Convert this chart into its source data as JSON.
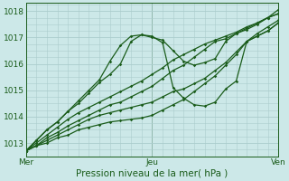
{
  "title": "Pression niveau de la mer( hPa )",
  "bg_color": "#cce8e8",
  "grid_color": "#aacccc",
  "line_color": "#1a5c1a",
  "xlim": [
    0,
    48
  ],
  "ylim": [
    1012.5,
    1018.3
  ],
  "yticks": [
    1013,
    1014,
    1015,
    1016,
    1017,
    1018
  ],
  "xtick_labels": [
    "Mer",
    "Jeu",
    "Ven"
  ],
  "xtick_positions": [
    0,
    24,
    48
  ],
  "series": [
    {
      "x": [
        0,
        2,
        4,
        6,
        8,
        10,
        12,
        14,
        16,
        18,
        20,
        22,
        24,
        26,
        28,
        30,
        32,
        34,
        36,
        38,
        40,
        42,
        44,
        46,
        48
      ],
      "y": [
        1012.7,
        1013.1,
        1013.5,
        1013.8,
        1014.2,
        1014.6,
        1015.0,
        1015.4,
        1016.1,
        1016.7,
        1017.05,
        1017.1,
        1017.0,
        1016.9,
        1016.5,
        1016.1,
        1015.95,
        1016.05,
        1016.2,
        1016.85,
        1017.15,
        1017.3,
        1017.5,
        1017.75,
        1017.9
      ]
    },
    {
      "x": [
        0,
        2,
        4,
        6,
        8,
        10,
        12,
        14,
        16,
        18,
        20,
        22,
        24,
        26,
        28,
        30,
        32,
        34,
        36,
        38,
        40,
        42,
        44,
        46,
        48
      ],
      "y": [
        1012.7,
        1013.1,
        1013.5,
        1013.8,
        1014.2,
        1014.5,
        1014.9,
        1015.3,
        1015.6,
        1016.0,
        1016.85,
        1017.1,
        1017.05,
        1016.8,
        1015.1,
        1014.7,
        1014.45,
        1014.4,
        1014.55,
        1015.05,
        1015.35,
        1016.85,
        1017.15,
        1017.4,
        1017.65
      ]
    },
    {
      "x": [
        0,
        2,
        4,
        6,
        8,
        10,
        12,
        14,
        16,
        18,
        20,
        22,
        24,
        26,
        28,
        30,
        32,
        34,
        36,
        38,
        40,
        42,
        44,
        46,
        48
      ],
      "y": [
        1012.7,
        1013.0,
        1013.3,
        1013.6,
        1013.9,
        1014.15,
        1014.35,
        1014.55,
        1014.75,
        1014.95,
        1015.15,
        1015.35,
        1015.6,
        1015.85,
        1016.15,
        1016.35,
        1016.55,
        1016.75,
        1016.9,
        1017.05,
        1017.2,
        1017.4,
        1017.55,
        1017.75,
        1018.05
      ]
    },
    {
      "x": [
        0,
        2,
        4,
        6,
        8,
        10,
        12,
        14,
        16,
        18,
        20,
        22,
        24,
        26,
        28,
        30,
        32,
        34,
        36,
        38,
        40,
        42,
        44,
        46,
        48
      ],
      "y": [
        1012.7,
        1012.9,
        1013.2,
        1013.4,
        1013.65,
        1013.85,
        1014.05,
        1014.25,
        1014.45,
        1014.55,
        1014.75,
        1014.95,
        1015.15,
        1015.45,
        1015.75,
        1015.95,
        1016.25,
        1016.55,
        1016.85,
        1016.95,
        1017.15,
        1017.35,
        1017.55,
        1017.75,
        1017.9
      ]
    },
    {
      "x": [
        0,
        2,
        4,
        6,
        8,
        10,
        12,
        14,
        16,
        18,
        20,
        22,
        24,
        26,
        28,
        30,
        32,
        34,
        36,
        38,
        40,
        42,
        44,
        46,
        48
      ],
      "y": [
        1012.7,
        1012.9,
        1013.1,
        1013.3,
        1013.5,
        1013.7,
        1013.9,
        1014.05,
        1014.15,
        1014.25,
        1014.35,
        1014.45,
        1014.55,
        1014.75,
        1014.95,
        1015.05,
        1015.25,
        1015.45,
        1015.75,
        1016.05,
        1016.45,
        1016.85,
        1017.05,
        1017.25,
        1017.55
      ]
    },
    {
      "x": [
        0,
        2,
        4,
        6,
        8,
        10,
        12,
        14,
        16,
        18,
        20,
        22,
        24,
        26,
        28,
        30,
        32,
        34,
        36,
        38,
        40,
        42,
        44,
        46,
        48
      ],
      "y": [
        1012.7,
        1012.9,
        1013.0,
        1013.2,
        1013.3,
        1013.5,
        1013.6,
        1013.7,
        1013.8,
        1013.85,
        1013.9,
        1013.95,
        1014.05,
        1014.25,
        1014.45,
        1014.65,
        1014.95,
        1015.25,
        1015.55,
        1015.95,
        1016.35,
        1016.85,
        1017.05,
        1017.25,
        1017.55
      ]
    }
  ],
  "marker": "D",
  "marker_size": 1.8,
  "linewidth": 0.9
}
